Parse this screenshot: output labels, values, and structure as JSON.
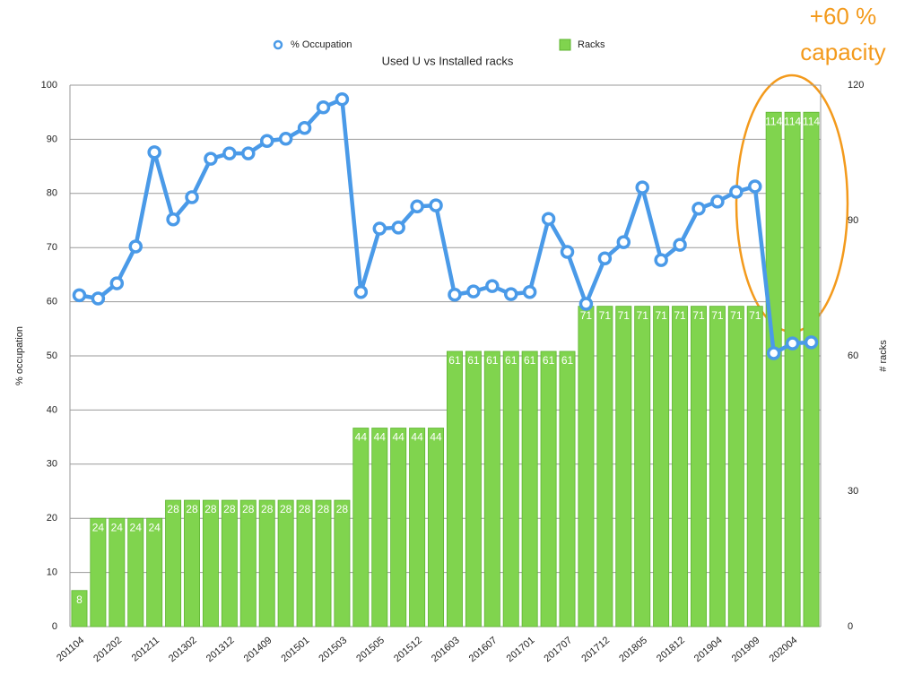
{
  "chart_data": {
    "type": "bar_line",
    "title": "Used U vs Installed racks",
    "ylabel": "% occupation",
    "y2label": "# racks",
    "annotation": [
      "+60 %",
      "capacity"
    ],
    "categories": [
      "201104",
      null,
      "201202",
      null,
      "201211",
      null,
      "201302",
      null,
      "201312",
      null,
      "201409",
      null,
      "201501",
      null,
      "201503",
      null,
      "201505",
      null,
      "201512",
      null,
      "201603",
      null,
      "201607",
      null,
      "201701",
      null,
      "201707",
      null,
      "201712",
      null,
      "201805",
      null,
      "201812",
      null,
      "201904",
      null,
      "201909",
      null,
      "202004",
      null
    ],
    "ylim": [
      0,
      100
    ],
    "yticks": [
      0,
      10,
      20,
      30,
      40,
      50,
      60,
      70,
      80,
      90,
      100
    ],
    "y2lim": [
      0,
      120
    ],
    "y2ticks": [
      0,
      30,
      60,
      90,
      120
    ],
    "grid": true,
    "series": [
      {
        "name": "% Occupation",
        "type": "line",
        "color": "#4a9ae8",
        "values": [
          61.2,
          60.6,
          63.4,
          70.2,
          87.6,
          75.2,
          79.3,
          86.4,
          87.4,
          87.4,
          89.7,
          90.1,
          92.1,
          95.9,
          97.4,
          61.8,
          73.5,
          73.7,
          77.6,
          77.8,
          61.3,
          61.9,
          62.9,
          61.4,
          61.8,
          75.3,
          69.2,
          59.6,
          68.0,
          71.0,
          81.1,
          67.7,
          70.5,
          77.2,
          78.5,
          80.3,
          81.3,
          50.5,
          52.3,
          52.5
        ]
      },
      {
        "name": "Racks",
        "type": "bar",
        "axis": "y2",
        "color": "#80d44e",
        "values": [
          8,
          24,
          24,
          24,
          24,
          28,
          28,
          28,
          28,
          28,
          28,
          28,
          28,
          28,
          28,
          44,
          44,
          44,
          44,
          44,
          61,
          61,
          61,
          61,
          61,
          61,
          61,
          71,
          71,
          71,
          71,
          71,
          71,
          71,
          71,
          71,
          71,
          114,
          114,
          114
        ]
      }
    ]
  }
}
